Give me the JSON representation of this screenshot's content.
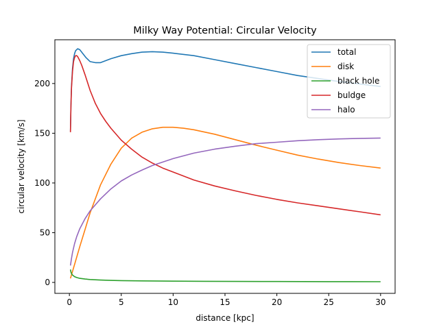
{
  "chart_data": {
    "type": "line",
    "title": "Milky Way Potential: Circular Velocity",
    "xlabel": "distance [kpc]",
    "ylabel": "circular velocity [km/s]",
    "xlim": [
      -1.4,
      31.4
    ],
    "ylim": [
      -11,
      244
    ],
    "xticks": [
      0,
      5,
      10,
      15,
      20,
      25,
      30
    ],
    "yticks": [
      0,
      50,
      100,
      150,
      200
    ],
    "grid": false,
    "legend_placement": "top-right",
    "series": [
      {
        "name": "total",
        "color": "#1f77b4",
        "x": [
          0.1,
          0.15,
          0.2,
          0.3,
          0.4,
          0.5,
          0.6,
          0.8,
          1.0,
          1.3,
          1.6,
          2.0,
          2.5,
          3.0,
          3.5,
          4.0,
          5.0,
          6.0,
          7.0,
          8.0,
          9.0,
          10.0,
          12.0,
          14.0,
          16.0,
          18.0,
          20.0,
          22.0,
          24.0,
          26.0,
          28.0,
          30.0
        ],
        "y": [
          152,
          178,
          197,
          215,
          225,
          230,
          233,
          235,
          234,
          230,
          226,
          222,
          221,
          221,
          223,
          225,
          228,
          230,
          231.5,
          232,
          231.5,
          230.5,
          228,
          224,
          220,
          216,
          212,
          208,
          205,
          202,
          199.5,
          197
        ]
      },
      {
        "name": "disk",
        "color": "#ff7f0e",
        "x": [
          0.1,
          0.5,
          1.0,
          1.5,
          2.0,
          3.0,
          4.0,
          5.0,
          6.0,
          7.0,
          8.0,
          9.0,
          10.0,
          11.0,
          12.0,
          14.0,
          16.0,
          18.0,
          20.0,
          22.0,
          24.0,
          26.0,
          28.0,
          30.0
        ],
        "y": [
          4,
          18,
          36,
          53,
          70,
          98,
          119,
          135,
          145,
          151,
          154.5,
          156,
          156,
          155,
          153.5,
          149,
          143.5,
          138,
          133,
          128,
          124,
          120.5,
          117.5,
          115
        ]
      },
      {
        "name": "black hole",
        "color": "#2ca02c",
        "x": [
          0.1,
          0.15,
          0.2,
          0.3,
          0.5,
          0.7,
          1.0,
          1.5,
          2.0,
          3.0,
          4.0,
          5.0,
          7.0,
          10.0,
          13.0,
          16.0,
          20.0,
          25.0,
          30.0
        ],
        "y": [
          13,
          10.5,
          9,
          7.4,
          5.8,
          4.9,
          4.1,
          3.4,
          2.9,
          2.4,
          2.05,
          1.85,
          1.55,
          1.3,
          1.15,
          1.0,
          0.9,
          0.8,
          0.75
        ]
      },
      {
        "name": "buldge",
        "color": "#d62728",
        "x": [
          0.1,
          0.15,
          0.2,
          0.3,
          0.4,
          0.5,
          0.6,
          0.7,
          0.8,
          1.0,
          1.2,
          1.5,
          2.0,
          2.5,
          3.0,
          3.5,
          4.0,
          5.0,
          6.0,
          7.0,
          8.0,
          9.0,
          10.0,
          12.0,
          14.0,
          16.0,
          18.0,
          20.0,
          22.0,
          24.0,
          26.0,
          28.0,
          30.0
        ],
        "y": [
          151,
          176,
          195,
          212,
          222,
          226,
          228,
          228,
          227,
          223,
          218,
          209,
          193,
          180,
          170,
          162,
          155,
          143,
          134,
          126,
          120,
          115,
          111,
          103,
          97,
          92,
          87.5,
          83.5,
          80,
          77,
          74,
          71,
          68
        ]
      },
      {
        "name": "halo",
        "color": "#9467bd",
        "x": [
          0.1,
          0.2,
          0.3,
          0.5,
          0.7,
          1.0,
          1.5,
          2.0,
          3.0,
          4.0,
          5.0,
          6.0,
          7.0,
          8.0,
          10.0,
          12.0,
          14.0,
          16.0,
          18.0,
          20.0,
          22.0,
          24.0,
          26.0,
          28.0,
          30.0
        ],
        "y": [
          17,
          24,
          30,
          39,
          46,
          54,
          64,
          72,
          84,
          94,
          102,
          108,
          113,
          117.5,
          124.5,
          130,
          134,
          137,
          139.5,
          141,
          142.5,
          143.5,
          144.3,
          144.8,
          145.2
        ]
      }
    ]
  }
}
